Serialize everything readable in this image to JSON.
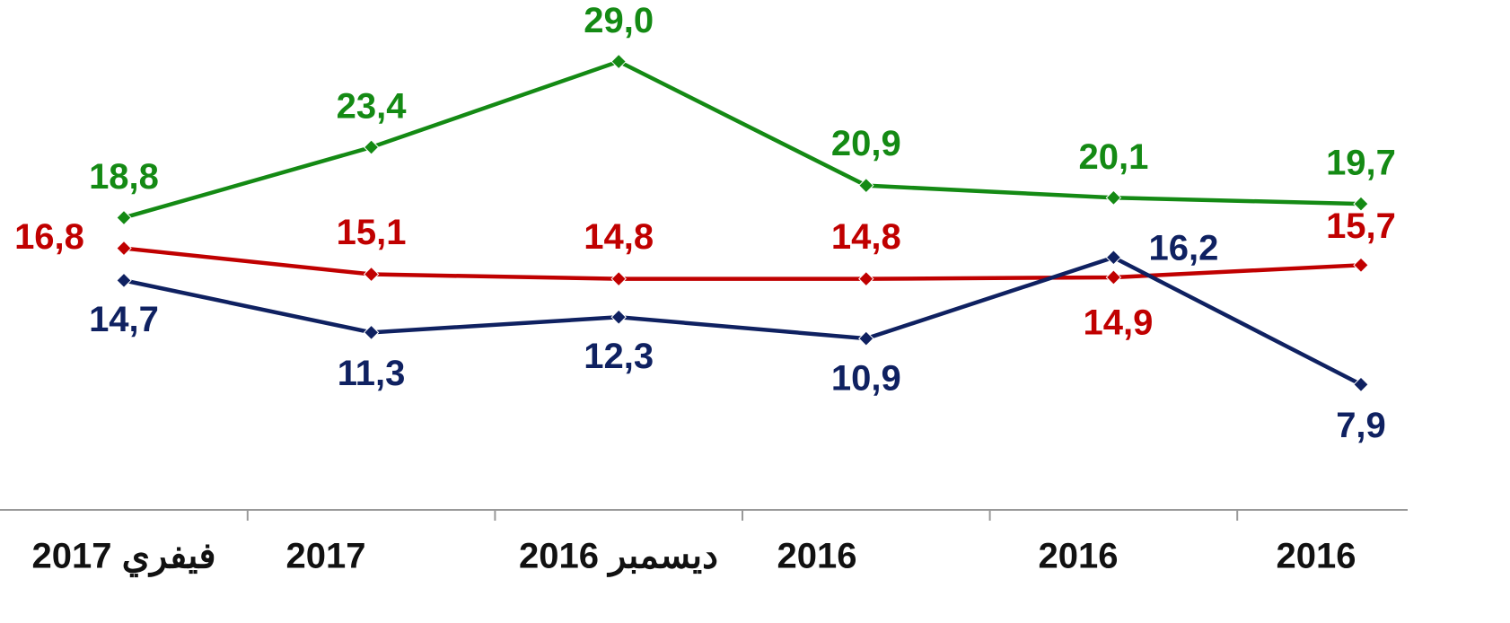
{
  "chart_data": {
    "type": "line",
    "categories": [
      "فيفري 2017",
      "2017",
      "ديسمبر 2016",
      "2016",
      "2016",
      "2016"
    ],
    "series": [
      {
        "color": "#148a14",
        "values": [
          18.8,
          23.4,
          29.0,
          20.9,
          20.1,
          19.7
        ],
        "value_labels": [
          "18,8",
          "23,4",
          "29,0",
          "20,9",
          "20,1",
          "19,7"
        ]
      },
      {
        "color": "#c00000",
        "values": [
          16.8,
          15.1,
          14.8,
          14.8,
          14.9,
          15.7
        ],
        "value_labels": [
          "16,8",
          "15,1",
          "14,8",
          "14,8",
          "14,9",
          "15,7"
        ]
      },
      {
        "color": "#0f2161",
        "values": [
          14.7,
          11.3,
          12.3,
          10.9,
          16.2,
          7.9
        ],
        "value_labels": [
          "14,7",
          "11,3",
          "12,3",
          "10,9",
          "16,2",
          "7,9"
        ]
      }
    ]
  }
}
